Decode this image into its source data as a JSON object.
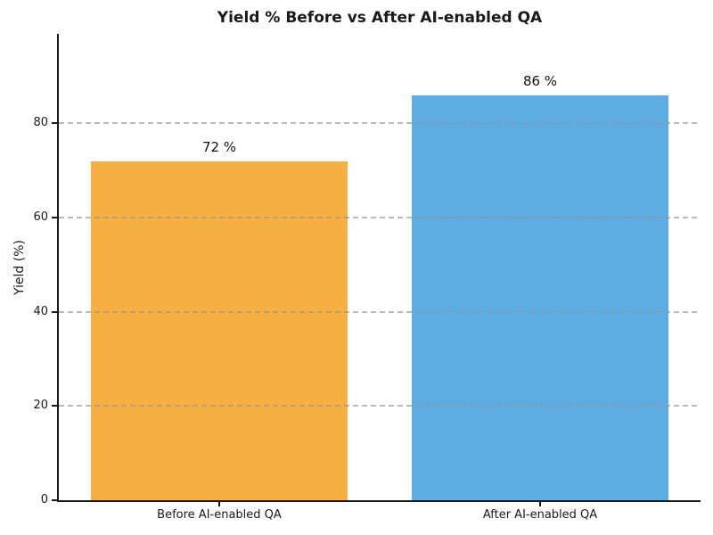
{
  "chart_data": {
    "type": "bar",
    "title": "Yield % Before vs After AI-enabled QA",
    "ylabel": "Yield (%)",
    "xlabel": "",
    "categories": [
      "Before AI-enabled QA",
      "After AI-enabled QA"
    ],
    "values": [
      72,
      86
    ],
    "value_labels": [
      "72 %",
      "86 %"
    ],
    "bar_colors": [
      "#f5b041",
      "#5dade2"
    ],
    "yticks": [
      0,
      20,
      40,
      60,
      80
    ],
    "ylim": [
      0,
      99
    ],
    "grid": {
      "axis": "y",
      "style": "dashed",
      "color": "#969696"
    },
    "legend": "none",
    "background": "#ffffff",
    "spine_color": "#1a1a1a"
  }
}
